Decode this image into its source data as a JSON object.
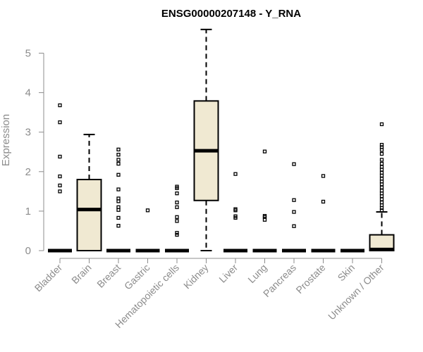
{
  "chart_data": {
    "type": "box",
    "title": "ENSG00000207148 - Y_RNA",
    "xlabel": "",
    "ylabel": "Expression",
    "ylim": [
      0,
      5.6
    ],
    "yticks": [
      0,
      1,
      2,
      3,
      4,
      5
    ],
    "grid": false,
    "box_fill": "#f0e9d2",
    "categories": [
      "Bladder",
      "Brain",
      "Breast",
      "Gastric",
      "Hematopoietic cells",
      "Kidney",
      "Liver",
      "Lung",
      "Pancreas",
      "Prostate",
      "Skin",
      "Unknown / Other"
    ],
    "boxes": [
      {
        "q1": 0,
        "median": 0,
        "q3": 0,
        "whisker_low": 0,
        "whisker_high": 0,
        "outliers": [
          1.5,
          1.65,
          1.88,
          2.38,
          3.25,
          3.68
        ]
      },
      {
        "q1": 0,
        "median": 1.04,
        "q3": 1.8,
        "whisker_low": 0,
        "whisker_high": 2.94,
        "outliers": []
      },
      {
        "q1": 0,
        "median": 0,
        "q3": 0,
        "whisker_low": 0,
        "whisker_high": 0,
        "outliers": [
          0.63,
          0.83,
          1.03,
          1.1,
          1.25,
          1.32,
          1.55,
          1.92,
          2.2,
          2.3,
          2.43,
          2.56
        ]
      },
      {
        "q1": 0,
        "median": 0,
        "q3": 0,
        "whisker_low": 0,
        "whisker_high": 0,
        "outliers": [
          1.02
        ]
      },
      {
        "q1": 0,
        "median": 0,
        "q3": 0,
        "whisker_low": 0,
        "whisker_high": 0,
        "outliers": [
          0.4,
          0.45,
          0.75,
          0.85,
          1.1,
          1.22,
          1.45,
          1.58,
          1.62
        ]
      },
      {
        "q1": 1.27,
        "median": 2.53,
        "q3": 3.79,
        "whisker_low": 0,
        "whisker_high": 5.6,
        "outliers": []
      },
      {
        "q1": 0,
        "median": 0,
        "q3": 0,
        "whisker_low": 0,
        "whisker_high": 0,
        "outliers": [
          0.83,
          0.87,
          1.02,
          1.05,
          1.94
        ]
      },
      {
        "q1": 0,
        "median": 0,
        "q3": 0,
        "whisker_low": 0,
        "whisker_high": 0,
        "outliers": [
          0.78,
          0.85,
          0.88,
          2.51
        ]
      },
      {
        "q1": 0,
        "median": 0,
        "q3": 0,
        "whisker_low": 0,
        "whisker_high": 0,
        "outliers": [
          0.62,
          0.98,
          1.28,
          2.19
        ]
      },
      {
        "q1": 0,
        "median": 0,
        "q3": 0,
        "whisker_low": 0,
        "whisker_high": 0,
        "outliers": [
          1.24,
          1.89
        ]
      },
      {
        "q1": 0,
        "median": 0,
        "q3": 0,
        "whisker_low": 0,
        "whisker_high": 0,
        "outliers": []
      },
      {
        "q1": 0,
        "median": 0.03,
        "q3": 0.4,
        "whisker_low": 0,
        "whisker_high": 0.98,
        "outliers": [
          1.02,
          1.08,
          1.15,
          1.22,
          1.3,
          1.38,
          1.45,
          1.52,
          1.6,
          1.68,
          1.75,
          1.82,
          1.9,
          1.97,
          2.05,
          2.12,
          2.2,
          2.3,
          2.45,
          2.55,
          2.62,
          2.68,
          3.2
        ]
      }
    ]
  }
}
